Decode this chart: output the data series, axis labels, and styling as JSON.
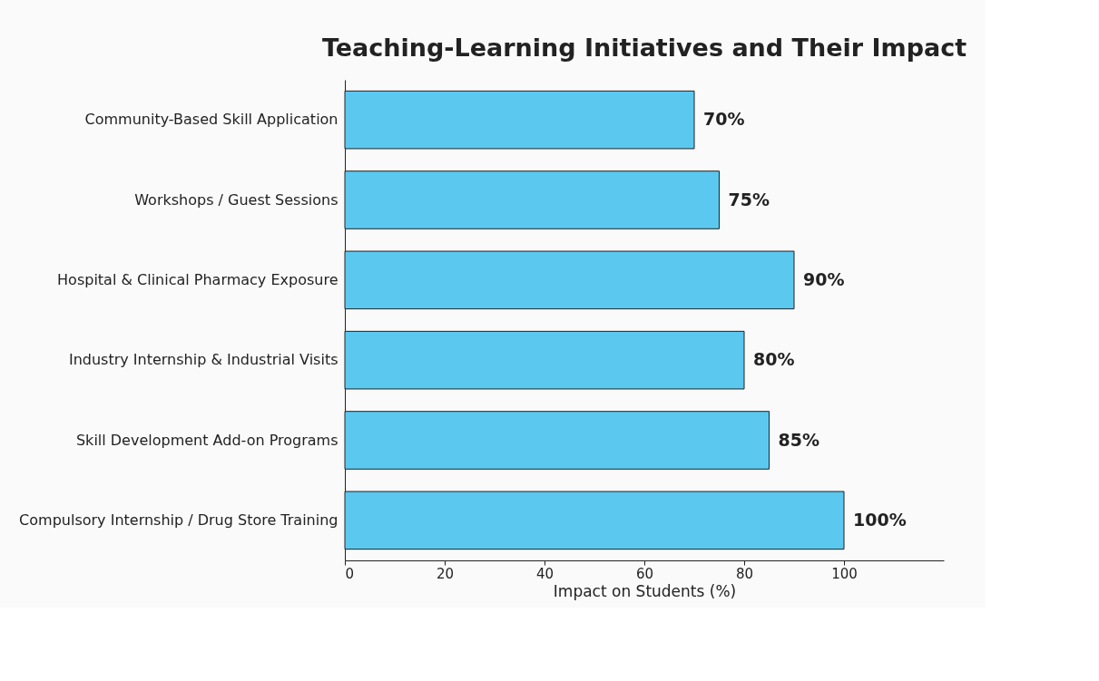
{
  "chart_data": {
    "type": "bar",
    "orientation": "horizontal",
    "title": "Teaching-Learning Initiatives and Their Impact",
    "xlabel": "Impact on Students (%)",
    "categories": [
      "Community-Based Skill Application",
      "Workshops / Guest Sessions",
      "Hospital & Clinical Pharmacy Exposure",
      "Industry Internship & Industrial Visits",
      "Skill Development Add-on Programs",
      "Compulsory Internship / Drug Store Training"
    ],
    "values": [
      70,
      75,
      90,
      80,
      85,
      100
    ],
    "value_labels": [
      "70%",
      "75%",
      "90%",
      "80%",
      "85%",
      "100%"
    ],
    "color": "#5bc8f0",
    "xlim": [
      0,
      120
    ],
    "xticks": [
      0,
      20,
      40,
      60,
      80,
      100
    ],
    "grid": false
  }
}
